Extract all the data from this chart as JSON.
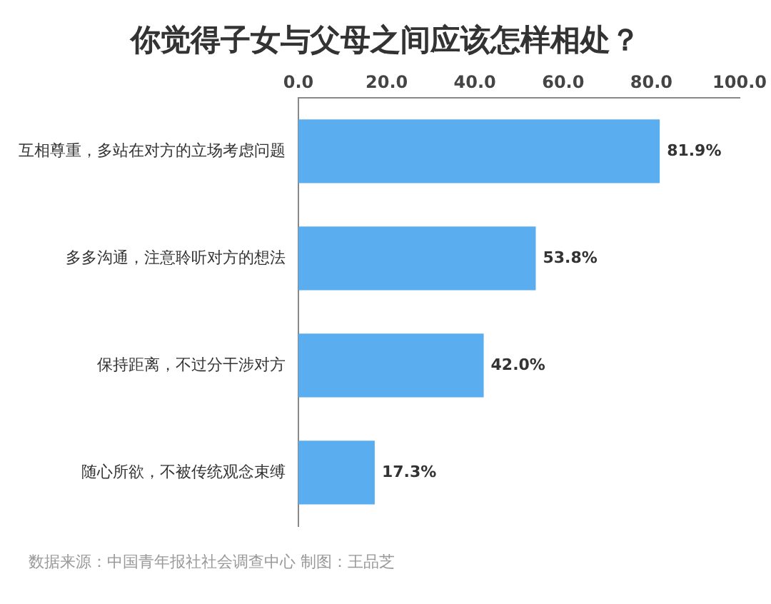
{
  "chart_data": {
    "type": "bar",
    "orientation": "horizontal",
    "title": "你觉得子女与父母之间应该怎样相处？",
    "categories": [
      "互相尊重，多站在对方的立场考虑问题",
      "多多沟通，注意聆听对方的想法",
      "保持距离，不过分干涉对方",
      "随心所欲，不被传统观念束缚"
    ],
    "values": [
      81.9,
      53.8,
      42.0,
      17.3
    ],
    "value_labels": [
      "81.9%",
      "53.8%",
      "42.0%",
      "17.3%"
    ],
    "color": "#5aaef0",
    "xlim": [
      0,
      100
    ],
    "xticks": [
      {
        "value": 0,
        "label": "0.0"
      },
      {
        "value": 20,
        "label": "20.0"
      },
      {
        "value": 40,
        "label": "40.0"
      },
      {
        "value": 60,
        "label": "60.0"
      },
      {
        "value": 80,
        "label": "80.0"
      },
      {
        "value": 100,
        "label": "100.0"
      }
    ],
    "grid": false,
    "legend": false,
    "annotations": [
      "数据来源：中国青年报社社会调查中心 制图：王品芝"
    ]
  }
}
